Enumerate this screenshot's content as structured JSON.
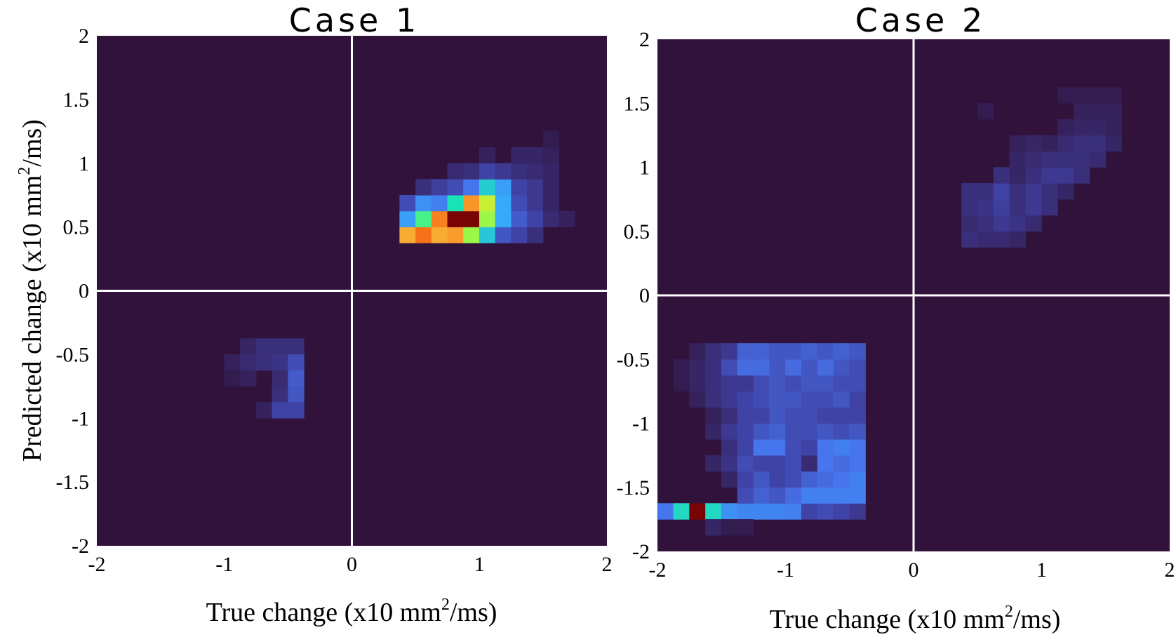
{
  "chart_data": [
    {
      "type": "heatmap",
      "title": "Case 1",
      "xlabel": {
        "pre": "True change (x10 mm",
        "sup": "2",
        "post": "/ms)"
      },
      "ylabel": {
        "pre": "Predicted change (x10 mm",
        "sup": "2",
        "post": "/ms)"
      },
      "xlim": [
        -2,
        2
      ],
      "ylim": [
        -2,
        2
      ],
      "bin_size": 0.125,
      "xticks": [
        "-2",
        "-1",
        "0",
        "1",
        "2"
      ],
      "yticks": [
        "2",
        "1.5",
        "1",
        "0.5",
        "0",
        "-0.5",
        "-1",
        "-1.5",
        "-2"
      ],
      "reference_lines": [
        0,
        0
      ],
      "background_color": "#30123b",
      "cells": [
        [
          0.375,
          0.375,
          0.72
        ],
        [
          0.5,
          0.375,
          0.8
        ],
        [
          0.625,
          0.375,
          0.72
        ],
        [
          0.75,
          0.375,
          0.74
        ],
        [
          0.875,
          0.375,
          0.55
        ],
        [
          1.0,
          0.375,
          0.35
        ],
        [
          1.125,
          0.375,
          0.14
        ],
        [
          1.25,
          0.375,
          0.1
        ],
        [
          1.375,
          0.375,
          0.06
        ],
        [
          0.375,
          0.5,
          0.28
        ],
        [
          0.5,
          0.5,
          0.45
        ],
        [
          0.625,
          0.5,
          0.78
        ],
        [
          0.75,
          0.5,
          1.0
        ],
        [
          0.875,
          0.5,
          1.0
        ],
        [
          1.0,
          0.5,
          0.55
        ],
        [
          1.125,
          0.5,
          0.3
        ],
        [
          1.25,
          0.5,
          0.15
        ],
        [
          1.375,
          0.5,
          0.1
        ],
        [
          1.5,
          0.5,
          0.05
        ],
        [
          1.625,
          0.5,
          0.03
        ],
        [
          0.375,
          0.625,
          0.12
        ],
        [
          0.5,
          0.625,
          0.25
        ],
        [
          0.625,
          0.625,
          0.22
        ],
        [
          0.75,
          0.625,
          0.4
        ],
        [
          0.875,
          0.625,
          0.75
        ],
        [
          1.0,
          0.625,
          0.6
        ],
        [
          1.125,
          0.625,
          0.3
        ],
        [
          1.25,
          0.625,
          0.12
        ],
        [
          1.375,
          0.625,
          0.08
        ],
        [
          1.5,
          0.625,
          0.04
        ],
        [
          0.5,
          0.75,
          0.06
        ],
        [
          0.625,
          0.75,
          0.09
        ],
        [
          0.75,
          0.75,
          0.12
        ],
        [
          0.875,
          0.75,
          0.2
        ],
        [
          1.0,
          0.75,
          0.36
        ],
        [
          1.125,
          0.75,
          0.28
        ],
        [
          1.25,
          0.75,
          0.1
        ],
        [
          1.375,
          0.75,
          0.08
        ],
        [
          1.5,
          0.75,
          0.04
        ],
        [
          0.75,
          0.875,
          0.05
        ],
        [
          0.875,
          0.875,
          0.06
        ],
        [
          1.0,
          0.875,
          0.1
        ],
        [
          1.125,
          0.875,
          0.08
        ],
        [
          1.25,
          0.875,
          0.06
        ],
        [
          1.375,
          0.875,
          0.05
        ],
        [
          1.5,
          0.875,
          0.04
        ],
        [
          1.0,
          1.0,
          0.03
        ],
        [
          1.25,
          1.0,
          0.04
        ],
        [
          1.375,
          1.0,
          0.04
        ],
        [
          1.5,
          1.0,
          0.03
        ],
        [
          1.5,
          1.125,
          0.02
        ],
        [
          -0.875,
          -0.5,
          0.04
        ],
        [
          -0.75,
          -0.5,
          0.06
        ],
        [
          -0.625,
          -0.5,
          0.06
        ],
        [
          -0.5,
          -0.5,
          0.06
        ],
        [
          -1.0,
          -0.625,
          0.03
        ],
        [
          -0.875,
          -0.625,
          0.05
        ],
        [
          -0.75,
          -0.625,
          0.06
        ],
        [
          -0.625,
          -0.625,
          0.07
        ],
        [
          -0.5,
          -0.625,
          0.12
        ],
        [
          -1.0,
          -0.75,
          0.02
        ],
        [
          -0.875,
          -0.75,
          0.03
        ],
        [
          -0.625,
          -0.75,
          0.05
        ],
        [
          -0.5,
          -0.75,
          0.15
        ],
        [
          -0.625,
          -0.875,
          0.06
        ],
        [
          -0.5,
          -0.875,
          0.14
        ],
        [
          -0.75,
          -1.0,
          0.03
        ],
        [
          -0.625,
          -1.0,
          0.1
        ],
        [
          -0.5,
          -1.0,
          0.1
        ]
      ]
    },
    {
      "type": "heatmap",
      "title": "Case 2",
      "xlabel": {
        "pre": "True change (x10 mm",
        "sup": "2",
        "post": "/ms)"
      },
      "ylabel": {
        "pre": "",
        "sup": "",
        "post": ""
      },
      "xlim": [
        -2,
        2
      ],
      "ylim": [
        -2,
        2
      ],
      "bin_size": 0.125,
      "xticks": [
        "-2",
        "-1",
        "0",
        "1",
        "2"
      ],
      "yticks": [
        "2",
        "1.5",
        "1",
        "0.5",
        "0",
        "-0.5",
        "-1",
        "-1.5",
        "-2"
      ],
      "reference_lines": [
        0,
        0
      ],
      "background_color": "#30123b",
      "cells": [
        [
          -2.0,
          -1.75,
          0.2
        ],
        [
          -1.875,
          -1.75,
          0.38
        ],
        [
          -1.75,
          -1.75,
          1.0
        ],
        [
          -1.625,
          -1.75,
          0.38
        ],
        [
          -1.5,
          -1.75,
          0.25
        ],
        [
          -1.375,
          -1.75,
          0.23
        ],
        [
          -1.25,
          -1.75,
          0.23
        ],
        [
          -1.125,
          -1.75,
          0.23
        ],
        [
          -1.0,
          -1.75,
          0.22
        ],
        [
          -0.875,
          -1.75,
          0.1
        ],
        [
          -0.75,
          -1.75,
          0.12
        ],
        [
          -0.625,
          -1.75,
          0.1
        ],
        [
          -0.5,
          -1.75,
          0.08
        ],
        [
          -1.625,
          -1.875,
          0.04
        ],
        [
          -1.5,
          -1.875,
          0.02
        ],
        [
          -1.375,
          -1.875,
          0.02
        ],
        [
          -1.375,
          -1.625,
          0.12
        ],
        [
          -1.25,
          -1.625,
          0.16
        ],
        [
          -1.125,
          -1.625,
          0.14
        ],
        [
          -1.0,
          -1.625,
          0.18
        ],
        [
          -0.875,
          -1.625,
          0.22
        ],
        [
          -0.75,
          -1.625,
          0.22
        ],
        [
          -0.625,
          -1.625,
          0.22
        ],
        [
          -0.5,
          -1.625,
          0.22
        ],
        [
          -1.5,
          -1.5,
          0.04
        ],
        [
          -1.375,
          -1.5,
          0.1
        ],
        [
          -1.25,
          -1.5,
          0.14
        ],
        [
          -1.125,
          -1.5,
          0.1
        ],
        [
          -1.0,
          -1.5,
          0.12
        ],
        [
          -0.875,
          -1.5,
          0.16
        ],
        [
          -0.75,
          -1.5,
          0.18
        ],
        [
          -0.625,
          -1.5,
          0.2
        ],
        [
          -0.5,
          -1.5,
          0.22
        ],
        [
          -1.625,
          -1.375,
          0.04
        ],
        [
          -1.5,
          -1.375,
          0.07
        ],
        [
          -1.375,
          -1.375,
          0.12
        ],
        [
          -1.25,
          -1.375,
          0.1
        ],
        [
          -1.125,
          -1.375,
          0.1
        ],
        [
          -1.0,
          -1.375,
          0.12
        ],
        [
          -0.875,
          -1.375,
          0.05
        ],
        [
          -0.75,
          -1.375,
          0.2
        ],
        [
          -0.625,
          -1.375,
          0.18
        ],
        [
          -0.5,
          -1.375,
          0.2
        ],
        [
          -1.5,
          -1.25,
          0.06
        ],
        [
          -1.375,
          -1.25,
          0.1
        ],
        [
          -1.25,
          -1.25,
          0.2
        ],
        [
          -1.125,
          -1.25,
          0.2
        ],
        [
          -1.0,
          -1.25,
          0.12
        ],
        [
          -0.875,
          -1.25,
          0.1
        ],
        [
          -0.75,
          -1.25,
          0.2
        ],
        [
          -0.625,
          -1.25,
          0.22
        ],
        [
          -0.5,
          -1.25,
          0.2
        ],
        [
          -1.625,
          -1.125,
          0.04
        ],
        [
          -1.5,
          -1.125,
          0.08
        ],
        [
          -1.375,
          -1.125,
          0.1
        ],
        [
          -1.25,
          -1.125,
          0.14
        ],
        [
          -1.125,
          -1.125,
          0.16
        ],
        [
          -1.0,
          -1.125,
          0.12
        ],
        [
          -0.875,
          -1.125,
          0.12
        ],
        [
          -0.75,
          -1.125,
          0.14
        ],
        [
          -0.625,
          -1.125,
          0.12
        ],
        [
          -0.5,
          -1.125,
          0.14
        ],
        [
          -1.625,
          -1.0,
          0.03
        ],
        [
          -1.5,
          -1.0,
          0.06
        ],
        [
          -1.375,
          -1.0,
          0.1
        ],
        [
          -1.25,
          -1.0,
          0.1
        ],
        [
          -1.125,
          -1.0,
          0.14
        ],
        [
          -1.0,
          -1.0,
          0.12
        ],
        [
          -0.875,
          -1.0,
          0.12
        ],
        [
          -0.75,
          -1.0,
          0.1
        ],
        [
          -0.625,
          -1.0,
          0.1
        ],
        [
          -0.5,
          -1.0,
          0.1
        ],
        [
          -1.75,
          -0.875,
          0.03
        ],
        [
          -1.625,
          -0.875,
          0.06
        ],
        [
          -1.5,
          -0.875,
          0.08
        ],
        [
          -1.375,
          -0.875,
          0.1
        ],
        [
          -1.25,
          -0.875,
          0.12
        ],
        [
          -1.125,
          -0.875,
          0.14
        ],
        [
          -1.0,
          -0.875,
          0.14
        ],
        [
          -0.875,
          -0.875,
          0.12
        ],
        [
          -0.75,
          -0.875,
          0.12
        ],
        [
          -0.625,
          -0.875,
          0.14
        ],
        [
          -0.5,
          -0.875,
          0.1
        ],
        [
          -1.875,
          -0.75,
          0.02
        ],
        [
          -1.75,
          -0.75,
          0.04
        ],
        [
          -1.625,
          -0.75,
          0.06
        ],
        [
          -1.5,
          -0.75,
          0.08
        ],
        [
          -1.375,
          -0.75,
          0.08
        ],
        [
          -1.25,
          -0.75,
          0.12
        ],
        [
          -1.125,
          -0.75,
          0.14
        ],
        [
          -1.0,
          -0.75,
          0.12
        ],
        [
          -0.875,
          -0.75,
          0.14
        ],
        [
          -0.75,
          -0.75,
          0.14
        ],
        [
          -0.625,
          -0.75,
          0.12
        ],
        [
          -0.5,
          -0.75,
          0.12
        ],
        [
          -1.875,
          -0.625,
          0.02
        ],
        [
          -1.75,
          -0.625,
          0.04
        ],
        [
          -1.625,
          -0.625,
          0.06
        ],
        [
          -1.5,
          -0.625,
          0.12
        ],
        [
          -1.375,
          -0.625,
          0.18
        ],
        [
          -1.25,
          -0.625,
          0.18
        ],
        [
          -1.125,
          -0.625,
          0.14
        ],
        [
          -1.0,
          -0.625,
          0.18
        ],
        [
          -0.875,
          -0.625,
          0.14
        ],
        [
          -0.75,
          -0.625,
          0.18
        ],
        [
          -0.625,
          -0.625,
          0.14
        ],
        [
          -0.5,
          -0.625,
          0.12
        ],
        [
          -1.75,
          -0.5,
          0.03
        ],
        [
          -1.625,
          -0.5,
          0.06
        ],
        [
          -1.5,
          -0.5,
          0.08
        ],
        [
          -1.375,
          -0.5,
          0.16
        ],
        [
          -1.25,
          -0.5,
          0.16
        ],
        [
          -1.125,
          -0.5,
          0.14
        ],
        [
          -1.0,
          -0.5,
          0.14
        ],
        [
          -0.875,
          -0.5,
          0.16
        ],
        [
          -0.75,
          -0.5,
          0.14
        ],
        [
          -0.625,
          -0.5,
          0.16
        ],
        [
          -0.5,
          -0.5,
          0.14
        ],
        [
          0.375,
          0.375,
          0.06
        ],
        [
          0.5,
          0.375,
          0.05
        ],
        [
          0.625,
          0.375,
          0.05
        ],
        [
          0.75,
          0.375,
          0.04
        ],
        [
          0.375,
          0.5,
          0.05
        ],
        [
          0.5,
          0.5,
          0.06
        ],
        [
          0.625,
          0.5,
          0.08
        ],
        [
          0.75,
          0.5,
          0.07
        ],
        [
          0.875,
          0.5,
          0.05
        ],
        [
          0.375,
          0.625,
          0.06
        ],
        [
          0.5,
          0.625,
          0.07
        ],
        [
          0.625,
          0.625,
          0.09
        ],
        [
          0.75,
          0.625,
          0.06
        ],
        [
          0.875,
          0.625,
          0.08
        ],
        [
          1.0,
          0.625,
          0.06
        ],
        [
          0.375,
          0.75,
          0.06
        ],
        [
          0.5,
          0.75,
          0.06
        ],
        [
          0.625,
          0.75,
          0.1
        ],
        [
          0.75,
          0.75,
          0.06
        ],
        [
          0.875,
          0.75,
          0.08
        ],
        [
          1.0,
          0.75,
          0.06
        ],
        [
          1.125,
          0.75,
          0.04
        ],
        [
          0.625,
          0.875,
          0.06
        ],
        [
          0.75,
          0.875,
          0.04
        ],
        [
          0.875,
          0.875,
          0.06
        ],
        [
          1.0,
          0.875,
          0.08
        ],
        [
          1.125,
          0.875,
          0.08
        ],
        [
          1.25,
          0.875,
          0.06
        ],
        [
          0.75,
          1.0,
          0.04
        ],
        [
          0.875,
          1.0,
          0.05
        ],
        [
          1.0,
          1.0,
          0.06
        ],
        [
          1.125,
          1.0,
          0.06
        ],
        [
          1.25,
          1.0,
          0.06
        ],
        [
          1.375,
          1.0,
          0.05
        ],
        [
          0.75,
          1.125,
          0.03
        ],
        [
          0.875,
          1.125,
          0.04
        ],
        [
          1.0,
          1.125,
          0.03
        ],
        [
          1.125,
          1.125,
          0.05
        ],
        [
          1.25,
          1.125,
          0.06
        ],
        [
          1.375,
          1.125,
          0.06
        ],
        [
          1.5,
          1.125,
          0.04
        ],
        [
          1.125,
          1.25,
          0.03
        ],
        [
          1.25,
          1.25,
          0.04
        ],
        [
          1.375,
          1.25,
          0.04
        ],
        [
          1.5,
          1.25,
          0.03
        ],
        [
          1.25,
          1.375,
          0.03
        ],
        [
          1.375,
          1.375,
          0.03
        ],
        [
          1.5,
          1.375,
          0.03
        ],
        [
          0.5,
          1.375,
          0.02
        ],
        [
          1.125,
          1.5,
          0.02
        ],
        [
          1.25,
          1.5,
          0.02
        ],
        [
          1.375,
          1.5,
          0.02
        ],
        [
          1.5,
          1.5,
          0.02
        ]
      ]
    }
  ]
}
